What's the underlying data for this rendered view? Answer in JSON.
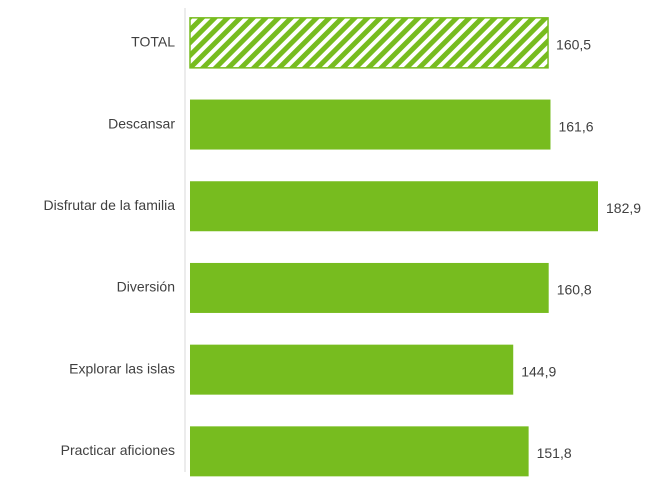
{
  "chart_data": {
    "type": "hbar",
    "categories": [
      "TOTAL",
      "Descansar",
      "Disfrutar de la familia",
      "Diversión",
      "Explorar las islas",
      "Practicar aficiones"
    ],
    "values": [
      160.5,
      161.6,
      182.9,
      160.8,
      144.9,
      151.8
    ],
    "value_labels": [
      "160,5",
      "161,6",
      "182,9",
      "160,8",
      "144,9",
      "151,8"
    ],
    "patterns": [
      "hatched",
      "solid",
      "solid",
      "solid",
      "solid",
      "solid"
    ],
    "color": "#77bc1f"
  }
}
